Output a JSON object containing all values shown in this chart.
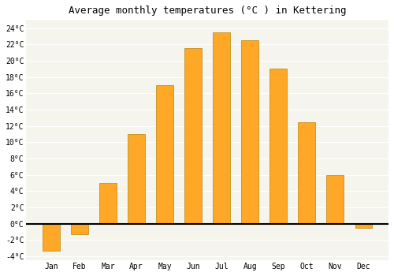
{
  "title": "Average monthly temperatures (°C ) in Kettering",
  "months": [
    "Jan",
    "Feb",
    "Mar",
    "Apr",
    "May",
    "Jun",
    "Jul",
    "Aug",
    "Sep",
    "Oct",
    "Nov",
    "Dec"
  ],
  "values": [
    -3.3,
    -1.3,
    5.0,
    11.0,
    17.0,
    21.5,
    23.5,
    22.5,
    19.0,
    12.5,
    6.0,
    -0.5
  ],
  "bar_color": "#FFA726",
  "bar_edge_color": "#B8860B",
  "ylim": [
    -4.5,
    25
  ],
  "yticks": [
    -4,
    -2,
    0,
    2,
    4,
    6,
    8,
    10,
    12,
    14,
    16,
    18,
    20,
    22,
    24
  ],
  "ytick_labels": [
    "-4°C",
    "-2°C",
    "0°C",
    "2°C",
    "4°C",
    "6°C",
    "8°C",
    "10°C",
    "12°C",
    "14°C",
    "16°C",
    "18°C",
    "20°C",
    "22°C",
    "24°C"
  ],
  "bg_color": "#ffffff",
  "plot_bg_color": "#f5f5ee",
  "grid_color": "#ffffff",
  "title_fontsize": 9,
  "tick_fontsize": 7,
  "bar_width": 0.6
}
